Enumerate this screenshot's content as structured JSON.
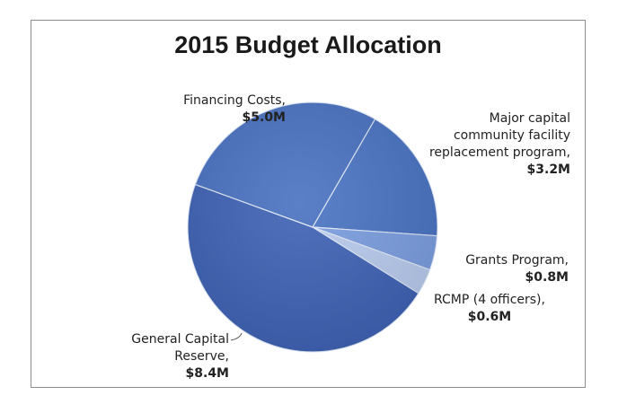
{
  "chart_data": {
    "type": "pie",
    "title": "2015 Budget Allocation",
    "unit": "$M",
    "slices": [
      {
        "name": "Major capital community facility replacement program,",
        "value_label": "$3.2M",
        "value": 3.2,
        "color": "#4a74c4"
      },
      {
        "name": "Grants Program,",
        "value_label": "$0.8M",
        "value": 0.8,
        "color": "#7b9ee0"
      },
      {
        "name": "RCMP (4 officers),",
        "value_label": "$0.6M",
        "value": 0.6,
        "color": "#b9cbee"
      },
      {
        "name": "General Capital Reserve,",
        "value_label": "$8.4M",
        "value": 8.4,
        "color": "#3f62b5"
      },
      {
        "name": "Financing Costs,",
        "value_label": "$5.0M",
        "value": 5.0,
        "color": "#4a72c2"
      }
    ],
    "start_angle_deg": 30,
    "direction": "clockwise",
    "legend": "none"
  }
}
